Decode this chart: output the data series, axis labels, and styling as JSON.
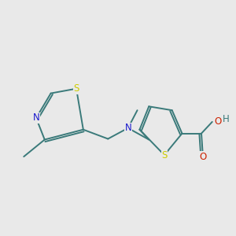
{
  "bg_color": "#e9e9e9",
  "bond_color": "#3a7a7a",
  "S_color": "#cccc00",
  "N_color": "#1a1acc",
  "O_color": "#cc2200",
  "bond_lw": 1.4,
  "font_size": 8.5,
  "fig_width": 3.0,
  "fig_height": 3.0,
  "xlim": [
    0,
    10
  ],
  "ylim": [
    0,
    10
  ]
}
